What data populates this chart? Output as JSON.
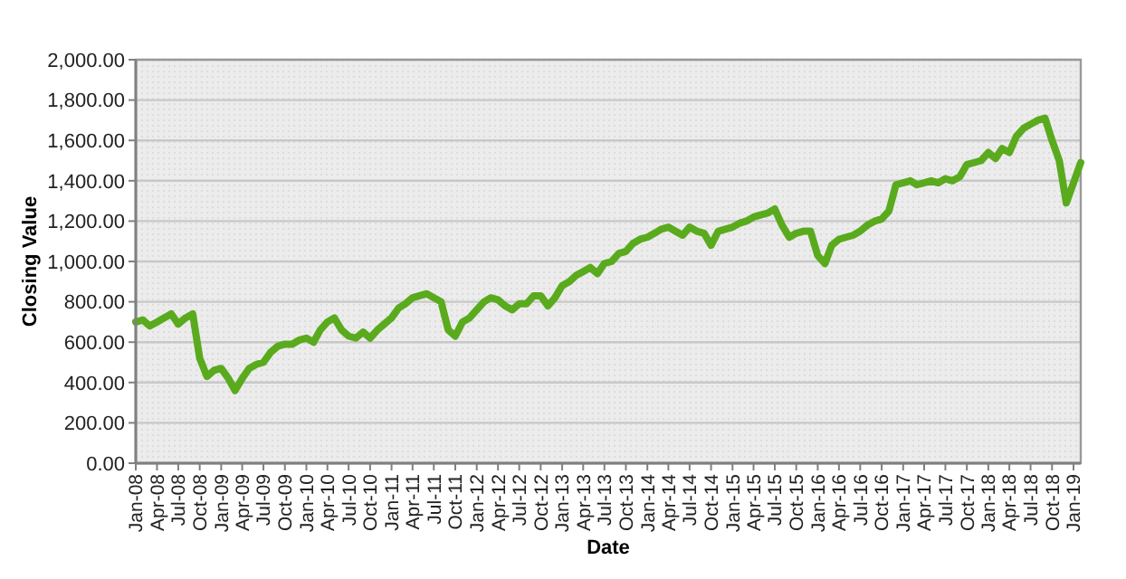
{
  "chart_data": {
    "type": "line",
    "xlabel": "Date",
    "ylabel": "Closing Value",
    "grid": "y",
    "marker": "none",
    "line_style": "solid",
    "x": [
      "2008-01",
      "2008-02",
      "2008-03",
      "2008-04",
      "2008-05",
      "2008-06",
      "2008-07",
      "2008-08",
      "2008-09",
      "2008-10",
      "2008-11",
      "2008-12",
      "2009-01",
      "2009-02",
      "2009-03",
      "2009-04",
      "2009-05",
      "2009-06",
      "2009-07",
      "2009-08",
      "2009-09",
      "2009-10",
      "2009-11",
      "2009-12",
      "2010-01",
      "2010-02",
      "2010-03",
      "2010-04",
      "2010-05",
      "2010-06",
      "2010-07",
      "2010-08",
      "2010-09",
      "2010-10",
      "2010-11",
      "2010-12",
      "2011-01",
      "2011-02",
      "2011-03",
      "2011-04",
      "2011-05",
      "2011-06",
      "2011-07",
      "2011-08",
      "2011-09",
      "2011-10",
      "2011-11",
      "2011-12",
      "2012-01",
      "2012-02",
      "2012-03",
      "2012-04",
      "2012-05",
      "2012-06",
      "2012-07",
      "2012-08",
      "2012-09",
      "2012-10",
      "2012-11",
      "2012-12",
      "2013-01",
      "2013-02",
      "2013-03",
      "2013-04",
      "2013-05",
      "2013-06",
      "2013-07",
      "2013-08",
      "2013-09",
      "2013-10",
      "2013-11",
      "2013-12",
      "2014-01",
      "2014-02",
      "2014-03",
      "2014-04",
      "2014-05",
      "2014-06",
      "2014-07",
      "2014-08",
      "2014-09",
      "2014-10",
      "2014-11",
      "2014-12",
      "2015-01",
      "2015-02",
      "2015-03",
      "2015-04",
      "2015-05",
      "2015-06",
      "2015-07",
      "2015-08",
      "2015-09",
      "2015-10",
      "2015-11",
      "2015-12",
      "2016-01",
      "2016-02",
      "2016-03",
      "2016-04",
      "2016-05",
      "2016-06",
      "2016-07",
      "2016-08",
      "2016-09",
      "2016-10",
      "2016-11",
      "2016-12",
      "2017-01",
      "2017-02",
      "2017-03",
      "2017-04",
      "2017-05",
      "2017-06",
      "2017-07",
      "2017-08",
      "2017-09",
      "2017-10",
      "2017-11",
      "2017-12",
      "2018-01",
      "2018-02",
      "2018-03",
      "2018-04",
      "2018-05",
      "2018-06",
      "2018-07",
      "2018-08",
      "2018-09",
      "2018-10",
      "2018-11",
      "2018-12",
      "2019-01",
      "2019-02"
    ],
    "series": [
      {
        "color": "#5aaa1e",
        "values": [
          700,
          710,
          680,
          700,
          720,
          740,
          690,
          720,
          740,
          520,
          430,
          460,
          470,
          420,
          360,
          420,
          470,
          490,
          500,
          550,
          580,
          590,
          590,
          610,
          620,
          600,
          660,
          700,
          720,
          660,
          630,
          620,
          650,
          620,
          660,
          690,
          720,
          770,
          790,
          820,
          830,
          840,
          820,
          800,
          660,
          630,
          700,
          720,
          760,
          800,
          820,
          810,
          780,
          760,
          790,
          790,
          830,
          830,
          780,
          820,
          880,
          900,
          930,
          950,
          970,
          940,
          990,
          1000,
          1040,
          1050,
          1090,
          1110,
          1120,
          1140,
          1160,
          1170,
          1150,
          1130,
          1170,
          1150,
          1140,
          1080,
          1150,
          1160,
          1170,
          1190,
          1200,
          1220,
          1230,
          1240,
          1260,
          1180,
          1120,
          1140,
          1150,
          1150,
          1030,
          990,
          1080,
          1110,
          1120,
          1130,
          1150,
          1180,
          1200,
          1210,
          1250,
          1380,
          1390,
          1400,
          1380,
          1390,
          1400,
          1390,
          1410,
          1400,
          1420,
          1480,
          1490,
          1500,
          1540,
          1510,
          1560,
          1540,
          1620,
          1660,
          1680,
          1700,
          1710,
          1600,
          1500,
          1290,
          1390,
          1490
        ]
      }
    ],
    "xlim": [
      "2008-01",
      "2019-02"
    ],
    "xticks": [
      {
        "value": "2008-01",
        "label": "Jan-08"
      },
      {
        "value": "2008-04",
        "label": "Apr-08"
      },
      {
        "value": "2008-07",
        "label": "Jul-08"
      },
      {
        "value": "2008-10",
        "label": "Oct-08"
      },
      {
        "value": "2009-01",
        "label": "Jan-09"
      },
      {
        "value": "2009-04",
        "label": "Apr-09"
      },
      {
        "value": "2009-07",
        "label": "Jul-09"
      },
      {
        "value": "2009-10",
        "label": "Oct-09"
      },
      {
        "value": "2010-01",
        "label": "Jan-10"
      },
      {
        "value": "2010-04",
        "label": "Apr-10"
      },
      {
        "value": "2010-07",
        "label": "Jul-10"
      },
      {
        "value": "2010-10",
        "label": "Oct-10"
      },
      {
        "value": "2011-01",
        "label": "Jan-11"
      },
      {
        "value": "2011-04",
        "label": "Apr-11"
      },
      {
        "value": "2011-07",
        "label": "Jul-11"
      },
      {
        "value": "2011-10",
        "label": "Oct-11"
      },
      {
        "value": "2012-01",
        "label": "Jan-12"
      },
      {
        "value": "2012-04",
        "label": "Apr-12"
      },
      {
        "value": "2012-07",
        "label": "Jul-12"
      },
      {
        "value": "2012-10",
        "label": "Oct-12"
      },
      {
        "value": "2013-01",
        "label": "Jan-13"
      },
      {
        "value": "2013-04",
        "label": "Apr-13"
      },
      {
        "value": "2013-07",
        "label": "Jul-13"
      },
      {
        "value": "2013-10",
        "label": "Oct-13"
      },
      {
        "value": "2014-01",
        "label": "Jan-14"
      },
      {
        "value": "2014-04",
        "label": "Apr-14"
      },
      {
        "value": "2014-07",
        "label": "Jul-14"
      },
      {
        "value": "2014-10",
        "label": "Oct-14"
      },
      {
        "value": "2015-01",
        "label": "Jan-15"
      },
      {
        "value": "2015-04",
        "label": "Apr-15"
      },
      {
        "value": "2015-07",
        "label": "Jul-15"
      },
      {
        "value": "2015-10",
        "label": "Oct-15"
      },
      {
        "value": "2016-01",
        "label": "Jan-16"
      },
      {
        "value": "2016-04",
        "label": "Apr-16"
      },
      {
        "value": "2016-07",
        "label": "Jul-16"
      },
      {
        "value": "2016-10",
        "label": "Oct-16"
      },
      {
        "value": "2017-01",
        "label": "Jan-17"
      },
      {
        "value": "2017-04",
        "label": "Apr-17"
      },
      {
        "value": "2017-07",
        "label": "Jul-17"
      },
      {
        "value": "2017-10",
        "label": "Oct-17"
      },
      {
        "value": "2018-01",
        "label": "Jan-18"
      },
      {
        "value": "2018-04",
        "label": "Apr-18"
      },
      {
        "value": "2018-07",
        "label": "Jul-18"
      },
      {
        "value": "2018-10",
        "label": "Oct-18"
      },
      {
        "value": "2019-01",
        "label": "Jan-19"
      }
    ],
    "ylim": [
      0,
      2000
    ],
    "yticks": [
      {
        "value": 0,
        "label": "0.00"
      },
      {
        "value": 200,
        "label": "200.00"
      },
      {
        "value": 400,
        "label": "400.00"
      },
      {
        "value": 600,
        "label": "600.00"
      },
      {
        "value": 800,
        "label": "800.00"
      },
      {
        "value": 1000,
        "label": "1,000.00"
      },
      {
        "value": 1200,
        "label": "1,200.00"
      },
      {
        "value": 1400,
        "label": "1,400.00"
      },
      {
        "value": 1600,
        "label": "1,600.00"
      },
      {
        "value": 1800,
        "label": "1,800.00"
      },
      {
        "value": 2000,
        "label": "2,000.00"
      }
    ]
  }
}
